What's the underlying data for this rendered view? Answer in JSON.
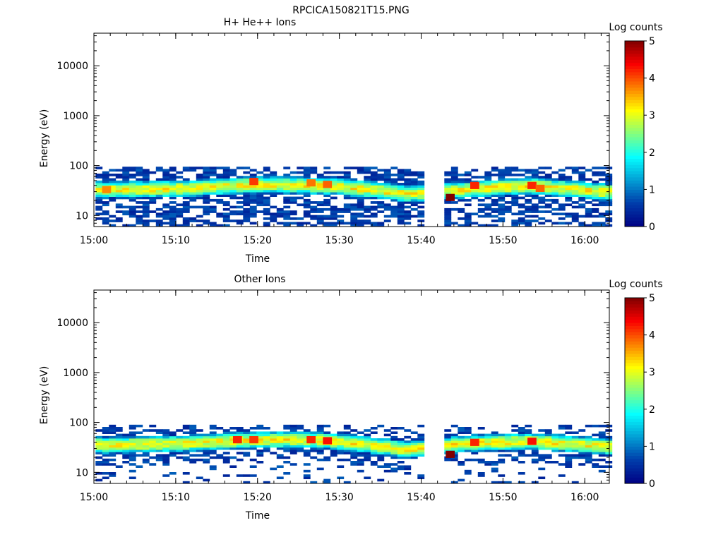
{
  "figure_title": "RPCICA150821T15.PNG",
  "chart_data": [
    {
      "type": "heatmap",
      "title": "H+ He++ Ions",
      "xlabel": "Time",
      "ylabel": "Energy (eV)",
      "y_scale": "log",
      "ylim": [
        6,
        45000
      ],
      "x_range": [
        "15:00",
        "16:03"
      ],
      "x_ticks": [
        "15:00",
        "15:10",
        "15:20",
        "15:30",
        "15:40",
        "15:50",
        "16:00"
      ],
      "y_ticks": [
        "10",
        "100",
        "1000",
        "10000"
      ],
      "colorbar": {
        "label": "Log counts",
        "range": [
          0,
          5
        ],
        "ticks": [
          "0",
          "1",
          "2",
          "3",
          "4",
          "5"
        ]
      },
      "data_gap": [
        "15:41",
        "15:42"
      ],
      "band_center_eV": {
        "time": [
          "15:01",
          "15:10",
          "15:20",
          "15:30",
          "15:38",
          "15:45",
          "15:53",
          "16:02"
        ],
        "values": [
          33,
          35,
          42,
          38,
          27,
          33,
          40,
          30
        ]
      },
      "hotspots": [
        {
          "time": "15:01",
          "energy_eV": 33,
          "log_counts": 3.7
        },
        {
          "time": "15:19",
          "energy_eV": 48,
          "log_counts": 4.1
        },
        {
          "time": "15:26",
          "energy_eV": 45,
          "log_counts": 3.8
        },
        {
          "time": "15:28",
          "energy_eV": 42,
          "log_counts": 3.9
        },
        {
          "time": "15:43",
          "energy_eV": 23,
          "log_counts": 5.0
        },
        {
          "time": "15:46",
          "energy_eV": 40,
          "log_counts": 4.2
        },
        {
          "time": "15:53",
          "energy_eV": 40,
          "log_counts": 4.2
        },
        {
          "time": "15:54",
          "energy_eV": 35,
          "log_counts": 3.9
        }
      ]
    },
    {
      "type": "heatmap",
      "title": "Other Ions",
      "xlabel": "Time",
      "ylabel": "Energy (eV)",
      "y_scale": "log",
      "ylim": [
        6,
        45000
      ],
      "x_range": [
        "15:00",
        "16:03"
      ],
      "x_ticks": [
        "15:00",
        "15:10",
        "15:20",
        "15:30",
        "15:40",
        "15:50",
        "16:00"
      ],
      "y_ticks": [
        "10",
        "100",
        "1000",
        "10000"
      ],
      "colorbar": {
        "label": "Log counts",
        "range": [
          0,
          5
        ],
        "ticks": [
          "0",
          "1",
          "2",
          "3",
          "4",
          "5"
        ]
      },
      "data_gap": [
        "15:41",
        "15:42"
      ],
      "band_center_eV": {
        "time": [
          "15:01",
          "15:10",
          "15:20",
          "15:27",
          "15:38",
          "15:45",
          "15:53",
          "16:02"
        ],
        "values": [
          35,
          38,
          45,
          45,
          28,
          38,
          42,
          33
        ]
      },
      "hotspots": [
        {
          "time": "15:17",
          "energy_eV": 45,
          "log_counts": 4.2
        },
        {
          "time": "15:19",
          "energy_eV": 45,
          "log_counts": 4.1
        },
        {
          "time": "15:26",
          "energy_eV": 45,
          "log_counts": 4.2
        },
        {
          "time": "15:28",
          "energy_eV": 43,
          "log_counts": 4.3
        },
        {
          "time": "15:43",
          "energy_eV": 23,
          "log_counts": 5.0
        },
        {
          "time": "15:46",
          "energy_eV": 40,
          "log_counts": 4.2
        },
        {
          "time": "15:53",
          "energy_eV": 42,
          "log_counts": 4.3
        }
      ]
    }
  ]
}
